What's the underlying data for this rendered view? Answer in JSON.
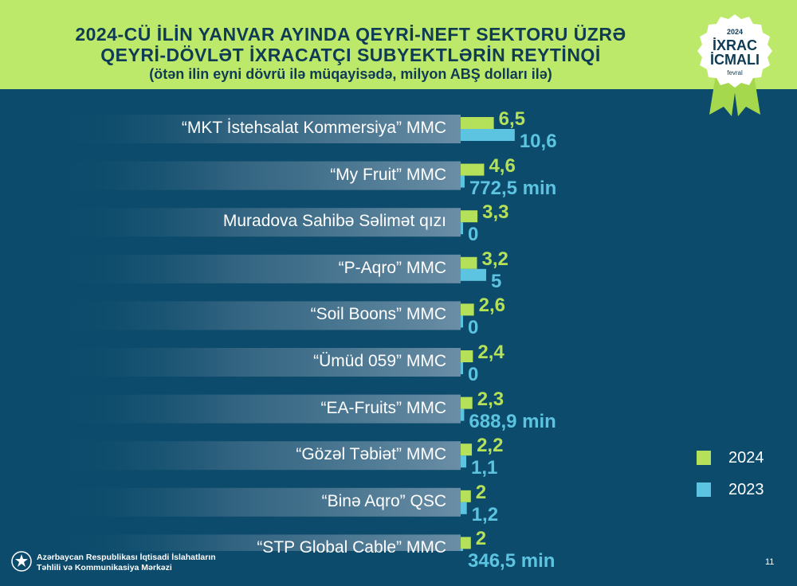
{
  "header": {
    "title_line1": "2024-CÜ İLİN YANVAR AYINDA QEYRİ-NEFT SEKTORU ÜZRƏ",
    "title_line2": "QEYRİ-DÖVLƏT İXRACATÇI SUBYEKTLƏRİN REYTİNQİ",
    "subtitle": "(ötən ilin eyni dövrü ilə müqayisədə, milyon ABŞ dolları ilə)"
  },
  "badge": {
    "year": "2024",
    "line1": "İXRAC",
    "line2": "İCMALI",
    "month": "fevral"
  },
  "colors": {
    "background": "#0c4b6b",
    "header": "#bde96a",
    "bar_2024": "#b5e15a",
    "bar_2023": "#5cc4e0",
    "label_bg": "#5b7f98"
  },
  "chart_data": {
    "type": "bar",
    "orientation": "horizontal",
    "categories": [
      "“MKT İstehsalat Kommersiya” MMC",
      "“My Fruit” MMC",
      "Muradova Sahibə Səlimət qızı",
      "“P-Aqro” MMC",
      "“Soil Boons” MMC",
      "“Ümüd 059” MMC",
      "“EA-Fruits” MMC",
      "“Gözəl Təbiət” MMC",
      "“Binə Aqro” QSC",
      "“STP Global Cable” MMC"
    ],
    "series": [
      {
        "name": "2024",
        "values": [
          6.5,
          4.6,
          3.3,
          3.2,
          2.6,
          2.4,
          2.3,
          2.2,
          2.0,
          2.0
        ],
        "value_labels": [
          "6,5",
          "4,6",
          "3,3",
          "3,2",
          "2,6",
          "2,4",
          "2,3",
          "2,2",
          "2",
          "2"
        ]
      },
      {
        "name": "2023",
        "values": [
          10.6,
          0.7725,
          0,
          5,
          0,
          0,
          0.6889,
          1.1,
          1.2,
          0.3465
        ],
        "value_labels": [
          "10,6",
          "772,5 min",
          "0",
          "5",
          "0",
          "0",
          "688,9 min",
          "1,1",
          "1,2",
          "346,5 min"
        ]
      }
    ],
    "legend_position": "right",
    "grid": false
  },
  "legend": {
    "item_2024": "2024",
    "item_2023": "2023"
  },
  "footer": {
    "org_line1": "Azərbaycan Respublikası İqtisadi İslahatların",
    "org_line2": "Təhlili və Kommunikasiya Mərkəzi",
    "page_number": "11"
  }
}
